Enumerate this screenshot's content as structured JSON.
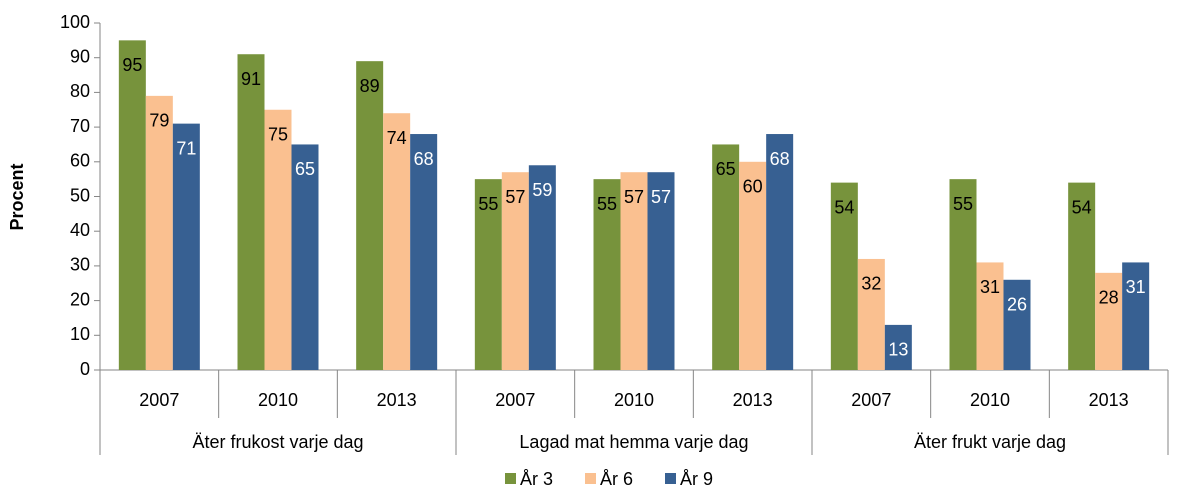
{
  "chart_data": {
    "type": "bar",
    "y_label": "Procent",
    "categories": [
      "2007",
      "2010",
      "2013",
      "2007",
      "2010",
      "2013",
      "2007",
      "2010",
      "2013"
    ],
    "groups": [
      "Äter frukost varje dag",
      "Lagad mat hemma varje dag",
      "Äter frukt varje dag"
    ],
    "series": [
      {
        "name": "År 3",
        "color": "#77933c",
        "label_color": "#000000",
        "values": [
          95,
          91,
          89,
          55,
          55,
          65,
          54,
          55,
          54
        ]
      },
      {
        "name": "År 6",
        "color": "#fac090",
        "label_color": "#000000",
        "values": [
          79,
          75,
          74,
          57,
          57,
          60,
          32,
          31,
          28
        ]
      },
      {
        "name": "År 9",
        "color": "#376092",
        "label_color": "#ffffff",
        "values": [
          71,
          65,
          68,
          59,
          57,
          68,
          13,
          26,
          31
        ]
      }
    ],
    "ylim": [
      0,
      100
    ],
    "yticks": [
      0,
      10,
      20,
      30,
      40,
      50,
      60,
      70,
      80,
      90,
      100
    ],
    "grid": false,
    "legend": "bottom"
  }
}
